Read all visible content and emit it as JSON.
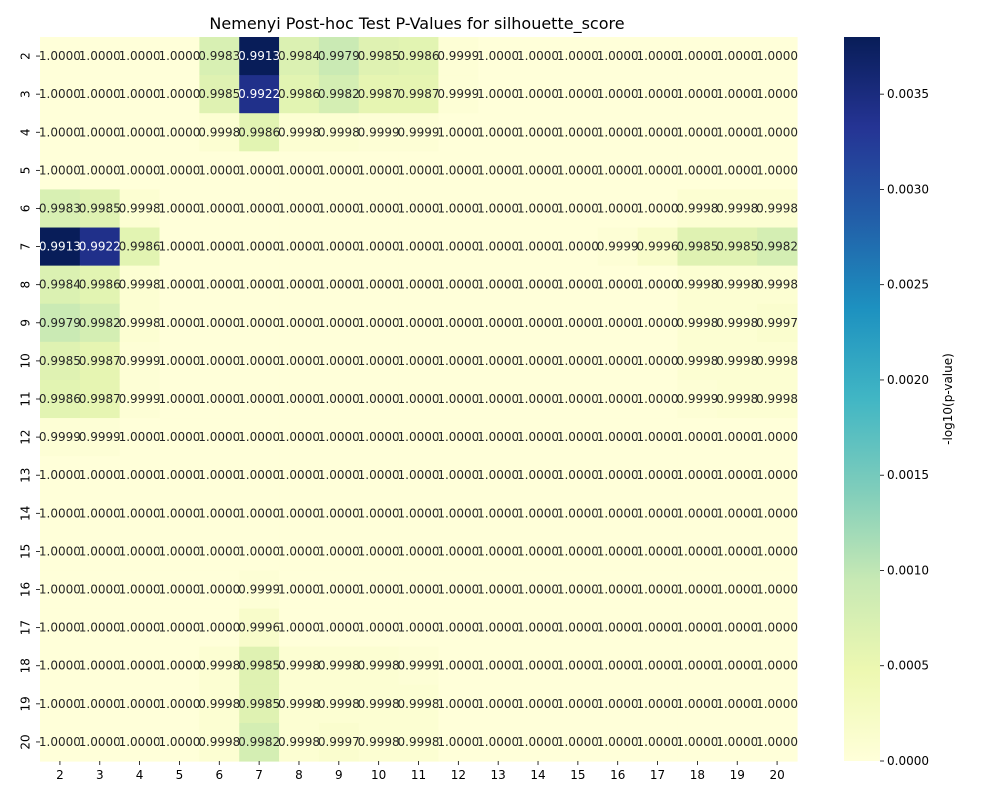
{
  "chart_data": {
    "type": "heatmap",
    "title": "Nemenyi Post-hoc Test P-Values for silhouette_score",
    "xlabel": "",
    "ylabel": "",
    "x_categories": [
      "2",
      "3",
      "4",
      "5",
      "6",
      "7",
      "8",
      "9",
      "10",
      "11",
      "12",
      "13",
      "14",
      "15",
      "16",
      "17",
      "18",
      "19",
      "20"
    ],
    "y_categories": [
      "2",
      "3",
      "4",
      "5",
      "6",
      "7",
      "8",
      "9",
      "10",
      "11",
      "12",
      "13",
      "14",
      "15",
      "16",
      "17",
      "18",
      "19",
      "20"
    ],
    "cell_labels": [
      [
        "1.0000",
        "1.0000",
        "1.0000",
        "1.0000",
        "0.9983",
        "0.9913",
        "0.9984",
        "0.9979",
        "0.9985",
        "0.9986",
        "0.9999",
        "1.0000",
        "1.0000",
        "1.0000",
        "1.0000",
        "1.0000",
        "1.0000",
        "1.0000",
        "1.0000"
      ],
      [
        "1.0000",
        "1.0000",
        "1.0000",
        "1.0000",
        "0.9985",
        "0.9922",
        "0.9986",
        "0.9982",
        "0.9987",
        "0.9987",
        "0.9999",
        "1.0000",
        "1.0000",
        "1.0000",
        "1.0000",
        "1.0000",
        "1.0000",
        "1.0000",
        "1.0000"
      ],
      [
        "1.0000",
        "1.0000",
        "1.0000",
        "1.0000",
        "0.9998",
        "0.9986",
        "0.9998",
        "0.9998",
        "0.9999",
        "0.9999",
        "1.0000",
        "1.0000",
        "1.0000",
        "1.0000",
        "1.0000",
        "1.0000",
        "1.0000",
        "1.0000",
        "1.0000"
      ],
      [
        "1.0000",
        "1.0000",
        "1.0000",
        "1.0000",
        "1.0000",
        "1.0000",
        "1.0000",
        "1.0000",
        "1.0000",
        "1.0000",
        "1.0000",
        "1.0000",
        "1.0000",
        "1.0000",
        "1.0000",
        "1.0000",
        "1.0000",
        "1.0000",
        "1.0000"
      ],
      [
        "0.9983",
        "0.9985",
        "0.9998",
        "1.0000",
        "1.0000",
        "1.0000",
        "1.0000",
        "1.0000",
        "1.0000",
        "1.0000",
        "1.0000",
        "1.0000",
        "1.0000",
        "1.0000",
        "1.0000",
        "1.0000",
        "0.9998",
        "0.9998",
        "0.9998"
      ],
      [
        "0.9913",
        "0.9922",
        "0.9986",
        "1.0000",
        "1.0000",
        "1.0000",
        "1.0000",
        "1.0000",
        "1.0000",
        "1.0000",
        "1.0000",
        "1.0000",
        "1.0000",
        "1.0000",
        "0.9999",
        "0.9996",
        "0.9985",
        "0.9985",
        "0.9982"
      ],
      [
        "0.9984",
        "0.9986",
        "0.9998",
        "1.0000",
        "1.0000",
        "1.0000",
        "1.0000",
        "1.0000",
        "1.0000",
        "1.0000",
        "1.0000",
        "1.0000",
        "1.0000",
        "1.0000",
        "1.0000",
        "1.0000",
        "0.9998",
        "0.9998",
        "0.9998"
      ],
      [
        "0.9979",
        "0.9982",
        "0.9998",
        "1.0000",
        "1.0000",
        "1.0000",
        "1.0000",
        "1.0000",
        "1.0000",
        "1.0000",
        "1.0000",
        "1.0000",
        "1.0000",
        "1.0000",
        "1.0000",
        "1.0000",
        "0.9998",
        "0.9998",
        "0.9997"
      ],
      [
        "0.9985",
        "0.9987",
        "0.9999",
        "1.0000",
        "1.0000",
        "1.0000",
        "1.0000",
        "1.0000",
        "1.0000",
        "1.0000",
        "1.0000",
        "1.0000",
        "1.0000",
        "1.0000",
        "1.0000",
        "1.0000",
        "0.9998",
        "0.9998",
        "0.9998"
      ],
      [
        "0.9986",
        "0.9987",
        "0.9999",
        "1.0000",
        "1.0000",
        "1.0000",
        "1.0000",
        "1.0000",
        "1.0000",
        "1.0000",
        "1.0000",
        "1.0000",
        "1.0000",
        "1.0000",
        "1.0000",
        "1.0000",
        "0.9999",
        "0.9998",
        "0.9998"
      ],
      [
        "0.9999",
        "0.9999",
        "1.0000",
        "1.0000",
        "1.0000",
        "1.0000",
        "1.0000",
        "1.0000",
        "1.0000",
        "1.0000",
        "1.0000",
        "1.0000",
        "1.0000",
        "1.0000",
        "1.0000",
        "1.0000",
        "1.0000",
        "1.0000",
        "1.0000"
      ],
      [
        "1.0000",
        "1.0000",
        "1.0000",
        "1.0000",
        "1.0000",
        "1.0000",
        "1.0000",
        "1.0000",
        "1.0000",
        "1.0000",
        "1.0000",
        "1.0000",
        "1.0000",
        "1.0000",
        "1.0000",
        "1.0000",
        "1.0000",
        "1.0000",
        "1.0000"
      ],
      [
        "1.0000",
        "1.0000",
        "1.0000",
        "1.0000",
        "1.0000",
        "1.0000",
        "1.0000",
        "1.0000",
        "1.0000",
        "1.0000",
        "1.0000",
        "1.0000",
        "1.0000",
        "1.0000",
        "1.0000",
        "1.0000",
        "1.0000",
        "1.0000",
        "1.0000"
      ],
      [
        "1.0000",
        "1.0000",
        "1.0000",
        "1.0000",
        "1.0000",
        "1.0000",
        "1.0000",
        "1.0000",
        "1.0000",
        "1.0000",
        "1.0000",
        "1.0000",
        "1.0000",
        "1.0000",
        "1.0000",
        "1.0000",
        "1.0000",
        "1.0000",
        "1.0000"
      ],
      [
        "1.0000",
        "1.0000",
        "1.0000",
        "1.0000",
        "1.0000",
        "0.9999",
        "1.0000",
        "1.0000",
        "1.0000",
        "1.0000",
        "1.0000",
        "1.0000",
        "1.0000",
        "1.0000",
        "1.0000",
        "1.0000",
        "1.0000",
        "1.0000",
        "1.0000"
      ],
      [
        "1.0000",
        "1.0000",
        "1.0000",
        "1.0000",
        "1.0000",
        "0.9996",
        "1.0000",
        "1.0000",
        "1.0000",
        "1.0000",
        "1.0000",
        "1.0000",
        "1.0000",
        "1.0000",
        "1.0000",
        "1.0000",
        "1.0000",
        "1.0000",
        "1.0000"
      ],
      [
        "1.0000",
        "1.0000",
        "1.0000",
        "1.0000",
        "0.9998",
        "0.9985",
        "0.9998",
        "0.9998",
        "0.9998",
        "0.9999",
        "1.0000",
        "1.0000",
        "1.0000",
        "1.0000",
        "1.0000",
        "1.0000",
        "1.0000",
        "1.0000",
        "1.0000"
      ],
      [
        "1.0000",
        "1.0000",
        "1.0000",
        "1.0000",
        "0.9998",
        "0.9985",
        "0.9998",
        "0.9998",
        "0.9998",
        "0.9998",
        "1.0000",
        "1.0000",
        "1.0000",
        "1.0000",
        "1.0000",
        "1.0000",
        "1.0000",
        "1.0000",
        "1.0000"
      ],
      [
        "1.0000",
        "1.0000",
        "1.0000",
        "1.0000",
        "0.9998",
        "0.9982",
        "0.9998",
        "0.9997",
        "0.9998",
        "0.9998",
        "1.0000",
        "1.0000",
        "1.0000",
        "1.0000",
        "1.0000",
        "1.0000",
        "1.0000",
        "1.0000",
        "1.0000"
      ]
    ],
    "color_metric": "-log10(p-value)",
    "colorbar": {
      "label": "-log10(p-value)",
      "min": 0,
      "max": 0.0038,
      "ticks": [
        "0.0000",
        "0.0005",
        "0.0010",
        "0.0015",
        "0.0020",
        "0.0025",
        "0.0030",
        "0.0035"
      ],
      "colormap": "YlGnBu",
      "colors": [
        "#ffffd9",
        "#edf8b1",
        "#c7e9b4",
        "#7fcdbb",
        "#41b6c4",
        "#1d91c0",
        "#225ea8",
        "#253494",
        "#081d58"
      ]
    },
    "grid": false,
    "legend": "right"
  }
}
